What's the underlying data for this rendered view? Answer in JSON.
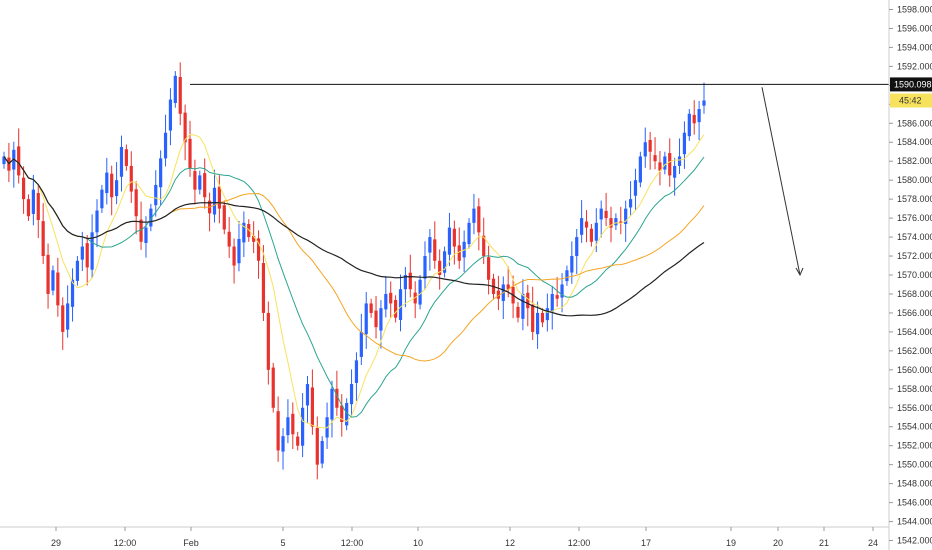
{
  "chart_data": {
    "type": "candlestick",
    "title": "",
    "xlabel": "",
    "ylabel": "",
    "ylim": [
      1541,
      1599
    ],
    "y_ticks": [
      "1542.000",
      "1544.000",
      "1546.000",
      "1548.000",
      "1550.000",
      "1552.000",
      "1554.000",
      "1556.000",
      "1558.000",
      "1560.000",
      "1562.000",
      "1564.000",
      "1566.000",
      "1568.000",
      "1570.000",
      "1572.000",
      "1574.000",
      "1576.000",
      "1578.000",
      "1580.000",
      "1582.000",
      "1584.000",
      "1586.000",
      "1588.000",
      "1590.000",
      "1592.000",
      "1594.000",
      "1596.000",
      "1598.000"
    ],
    "x_ticks": [
      "29",
      "12:00",
      "Feb",
      "5",
      "12:00",
      "10",
      "12",
      "12:00",
      "17",
      "19",
      "20",
      "21",
      "24"
    ],
    "price_line": {
      "value": 1590.098,
      "label": "1590.098"
    },
    "last_price_badge": {
      "value": 1588.4,
      "label": "45:42"
    },
    "annotation": {
      "type": "arrow",
      "from": [
        1589.8
      ],
      "to": [
        1570.0
      ]
    },
    "colors": {
      "up": "#2962ff",
      "down": "#e8322d",
      "ma_yellow": "#f7e25e",
      "ma_teal": "#2ba58f",
      "ma_orange": "#f5a524",
      "ma_black": "#222222",
      "badge": "#f7e25e"
    },
    "close": [
      1582.5,
      1581.0,
      1583.2,
      1580.5,
      1578.0,
      1576.2,
      1579.0,
      1575.8,
      1572.0,
      1568.0,
      1570.5,
      1566.8,
      1564.0,
      1567.0,
      1569.5,
      1571.5,
      1573.0,
      1570.8,
      1574.5,
      1576.8,
      1579.0,
      1580.8,
      1578.2,
      1580.0,
      1583.5,
      1581.5,
      1578.8,
      1576.2,
      1573.5,
      1575.0,
      1577.0,
      1579.5,
      1582.3,
      1585.0,
      1588.5,
      1591.0,
      1587.0,
      1584.0,
      1581.2,
      1579.0,
      1580.5,
      1578.2,
      1576.5,
      1579.2,
      1577.0,
      1574.8,
      1573.0,
      1571.0,
      1573.8,
      1575.5,
      1574.0,
      1573.5,
      1571.5,
      1566.0,
      1560.0,
      1556.0,
      1551.5,
      1553.0,
      1555.0,
      1553.2,
      1552.0,
      1556.0,
      1558.5,
      1554.0,
      1550.0,
      1552.5,
      1555.0,
      1558.0,
      1556.0,
      1554.5,
      1556.5,
      1558.5,
      1561.0,
      1564.0,
      1567.0,
      1566.0,
      1564.5,
      1566.5,
      1568.0,
      1567.0,
      1565.5,
      1568.5,
      1570.0,
      1568.5,
      1567.0,
      1569.5,
      1572.0,
      1574.0,
      1571.5,
      1570.0,
      1572.5,
      1575.0,
      1573.0,
      1571.5,
      1573.5,
      1575.5,
      1577.0,
      1574.5,
      1572.0,
      1569.5,
      1568.0,
      1567.5,
      1569.0,
      1568.5,
      1567.0,
      1565.5,
      1568.0,
      1566.5,
      1564.0,
      1566.0,
      1565.0,
      1566.5,
      1568.0,
      1567.5,
      1569.0,
      1570.5,
      1572.0,
      1574.0,
      1576.0,
      1575.0,
      1573.5,
      1575.5,
      1577.0,
      1576.0,
      1575.0,
      1576.0,
      1575.5,
      1577.0,
      1578.0,
      1580.0,
      1582.5,
      1584.0,
      1583.0,
      1582.0,
      1581.0,
      1582.5,
      1580.5,
      1581.5,
      1582.5,
      1585.0,
      1587.0,
      1586.0,
      1587.5,
      1588.4
    ]
  }
}
